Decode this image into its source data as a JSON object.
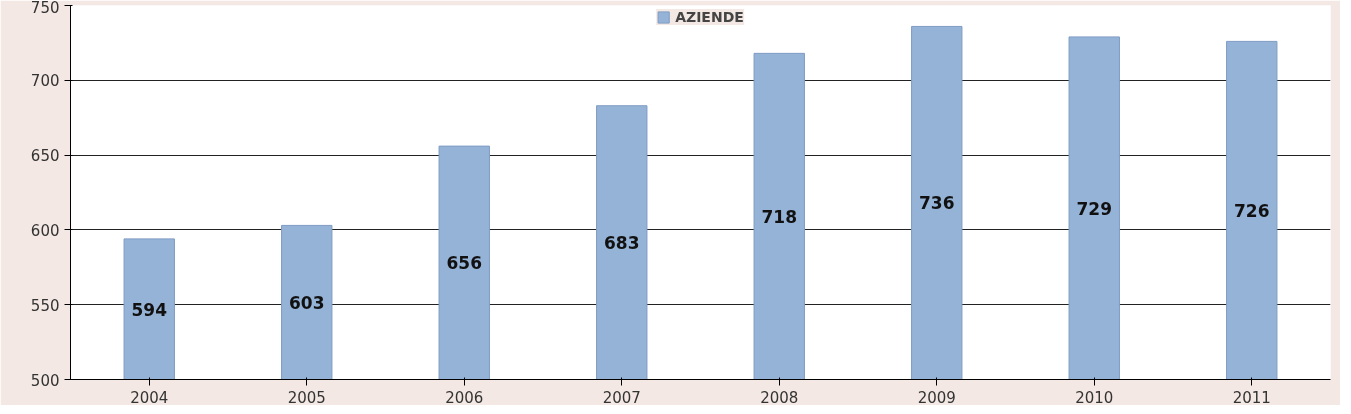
{
  "chart_data": {
    "type": "bar",
    "categories": [
      "2004",
      "2005",
      "2006",
      "2007",
      "2008",
      "2009",
      "2010",
      "2011"
    ],
    "series": [
      {
        "name": "AZIENDE",
        "color": "#95b3d7",
        "values": [
          594,
          603,
          656,
          683,
          718,
          736,
          729,
          726
        ]
      }
    ],
    "ylim": [
      500,
      750
    ],
    "yticks": [
      500,
      550,
      600,
      650,
      700,
      750
    ],
    "grid": "y",
    "legend": "top",
    "data_labels": true
  }
}
